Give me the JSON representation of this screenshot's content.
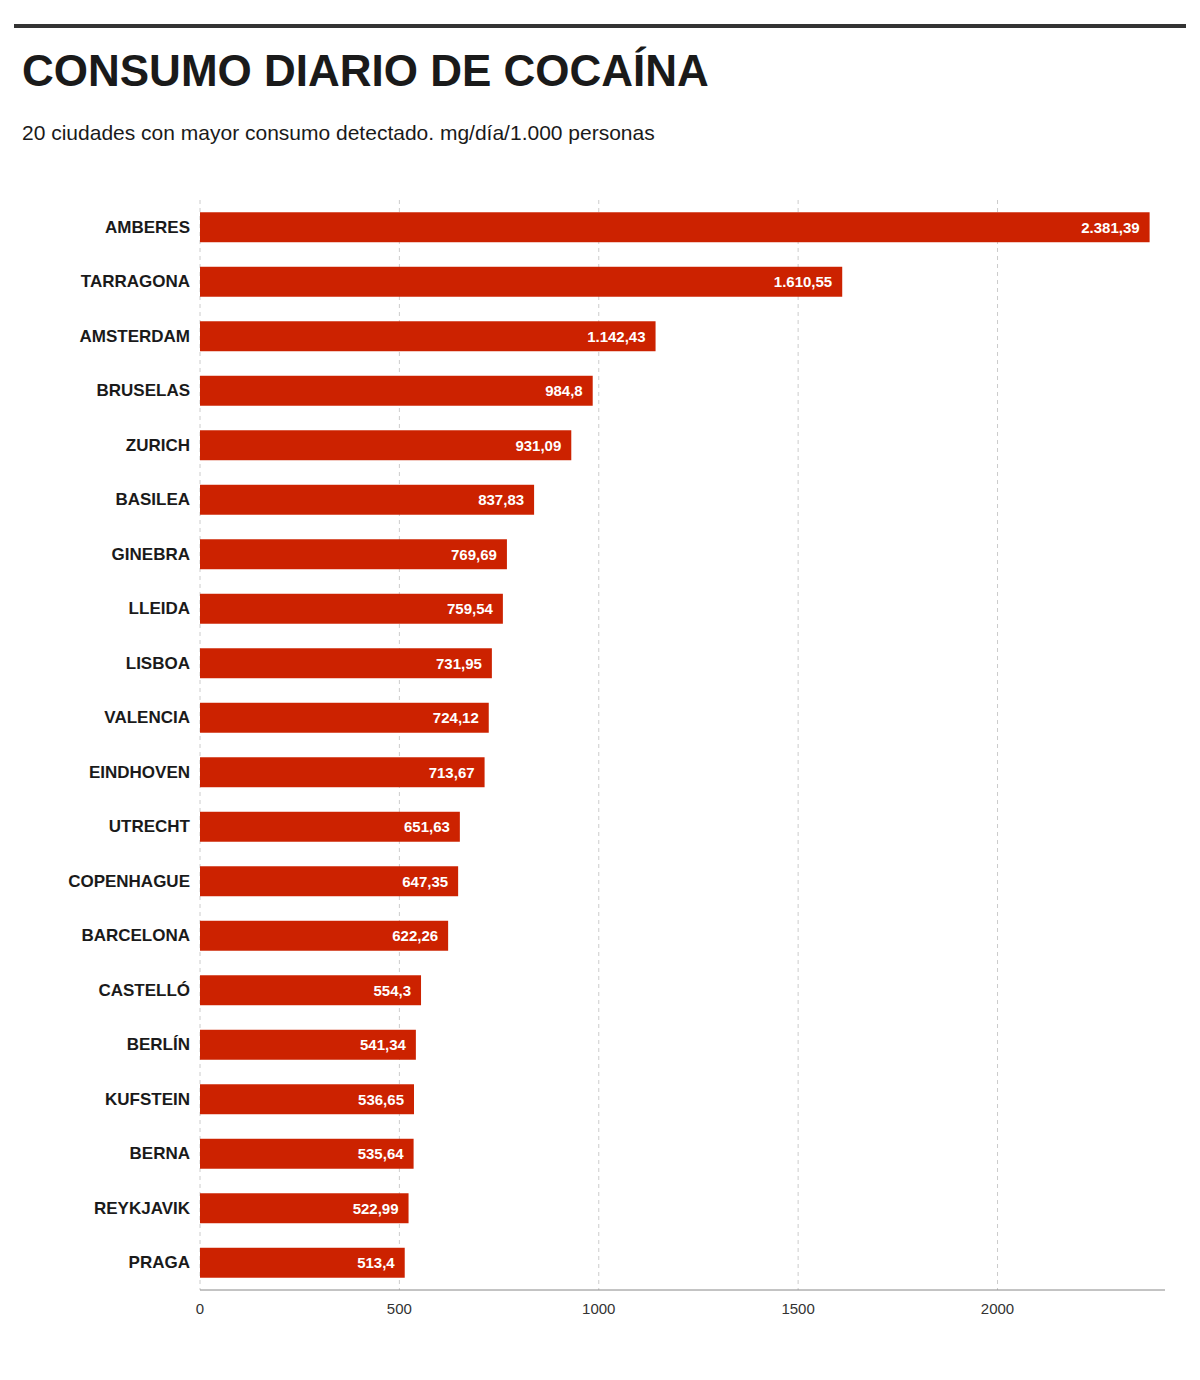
{
  "chart_data": {
    "type": "bar",
    "orientation": "horizontal",
    "title": "CONSUMO DIARIO DE COCAÍNA",
    "subtitle": "20 ciudades con mayor consumo detectado. mg/día/1.000 personas",
    "categories": [
      "AMBERES",
      "TARRAGONA",
      "AMSTERDAM",
      "BRUSELAS",
      "ZURICH",
      "BASILEA",
      "GINEBRA",
      "LLEIDA",
      "LISBOA",
      "VALENCIA",
      "EINDHOVEN",
      "UTRECHT",
      "COPENHAGUE",
      "BARCELONA",
      "CASTELLÓ",
      "BERLÍN",
      "KUFSTEIN",
      "BERNA",
      "REYKJAVIK",
      "PRAGA"
    ],
    "values": [
      2381.39,
      1610.55,
      1142.43,
      984.8,
      931.09,
      837.83,
      769.69,
      759.54,
      731.95,
      724.12,
      713.67,
      651.63,
      647.35,
      622.26,
      554.3,
      541.34,
      536.65,
      535.64,
      522.99,
      513.4
    ],
    "value_labels": [
      "2.381,39",
      "1.610,55",
      "1.142,43",
      "984,8",
      "931,09",
      "837,83",
      "769,69",
      "759,54",
      "731,95",
      "724,12",
      "713,67",
      "651,63",
      "647,35",
      "622,26",
      "554,3",
      "541,34",
      "536,65",
      "535,64",
      "522,99",
      "513,4"
    ],
    "color": "#cc2200",
    "xlim": [
      0,
      2420
    ],
    "xticks": [
      0,
      500,
      1000,
      1500,
      2000
    ],
    "grid": true,
    "data_labels": true
  }
}
